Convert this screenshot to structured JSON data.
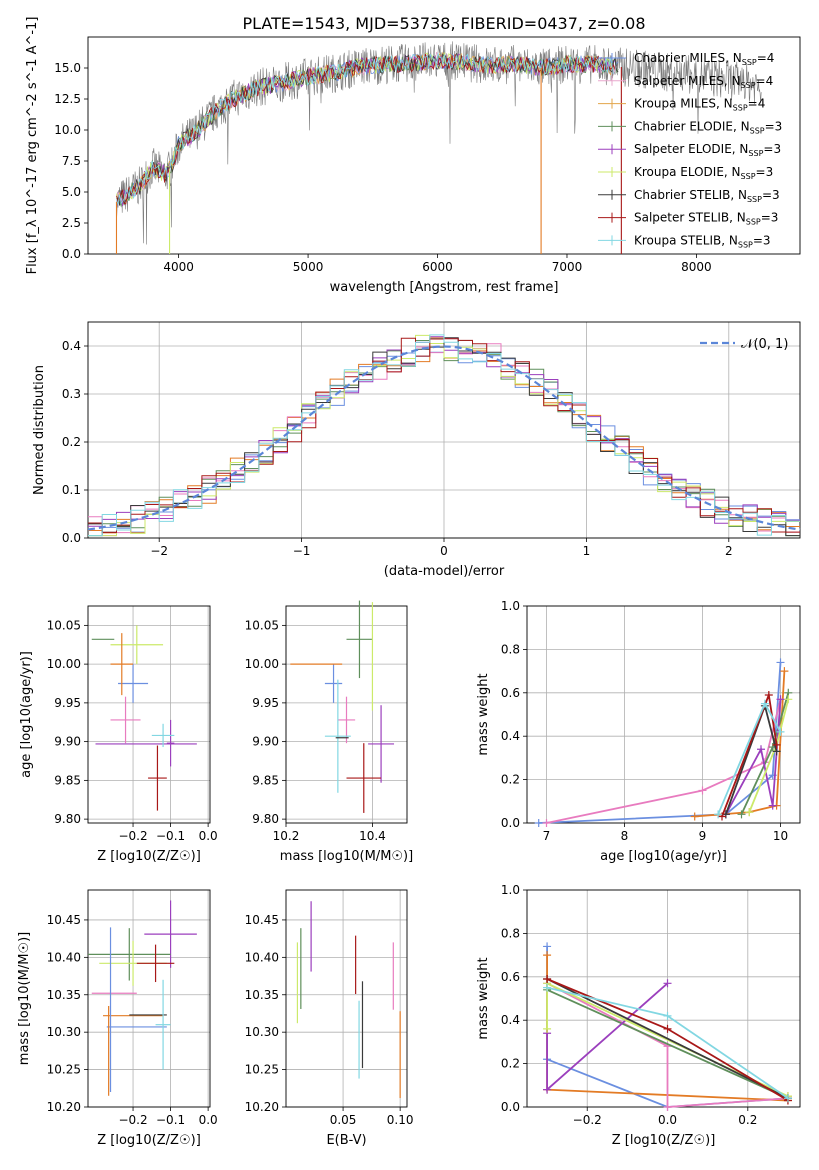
{
  "title": "PLATE=1543, MJD=53738, FIBERID=0437, z=0.08",
  "colors": {
    "chabrier_miles": "#6b8fe0",
    "salpeter_miles": "#e9a8cd",
    "kroupa_miles": "#e2a44a",
    "chabrier_elodie": "#5f8f5b",
    "salpeter_elodie": "#9b3fbd",
    "kroupa_elodie": "#ccea6a",
    "chabrier_stelib": "#3a3a3a",
    "salpeter_stelib": "#a81818",
    "kroupa_stelib": "#82d7e2",
    "spectrum_gray": "#7a7a7a",
    "orange": "#e37b25",
    "pink": "#e87bbf",
    "gauss": "#5b86d8"
  },
  "legend": [
    {
      "model": "Chabrier MILES",
      "nssp": "4",
      "color_key": "chabrier_miles"
    },
    {
      "model": "Salpeter MILES",
      "nssp": "4",
      "color_key": "salpeter_miles"
    },
    {
      "model": "Kroupa MILES",
      "nssp": "4",
      "color_key": "kroupa_miles"
    },
    {
      "model": "Chabrier ELODIE",
      "nssp": "3",
      "color_key": "chabrier_elodie"
    },
    {
      "model": "Salpeter ELODIE",
      "nssp": "3",
      "color_key": "salpeter_elodie"
    },
    {
      "model": "Kroupa ELODIE",
      "nssp": "3",
      "color_key": "kroupa_elodie"
    },
    {
      "model": "Chabrier STELIB",
      "nssp": "3",
      "color_key": "chabrier_stelib"
    },
    {
      "model": "Salpeter STELIB",
      "nssp": "3",
      "color_key": "salpeter_stelib"
    },
    {
      "model": "Kroupa STELIB",
      "nssp": "3",
      "color_key": "kroupa_stelib"
    }
  ],
  "chart_data": [
    {
      "id": "spectrum",
      "type": "line",
      "xlabel": "wavelength [Angstrom, rest frame]",
      "ylabel": "Flux [f_λ 10^-17 erg cm^-2 s^-1 A^-1]",
      "xlim": [
        3300,
        8800
      ],
      "ylim": [
        0,
        17.5
      ],
      "xticks": [
        4000,
        5000,
        6000,
        7000,
        8000
      ],
      "yticks": [
        0.0,
        2.5,
        5.0,
        7.5,
        10.0,
        12.5,
        15.0
      ],
      "grid": false,
      "continuum_x": [
        3520,
        3600,
        3700,
        3800,
        3900,
        3950,
        4000,
        4100,
        4200,
        4300,
        4400,
        4600,
        4800,
        5000,
        5200,
        5400,
        5600,
        5800,
        6000,
        6200,
        6400,
        6600,
        6800,
        7000,
        7200,
        7400,
        7600,
        7800,
        8000,
        8200,
        8400,
        8500
      ],
      "continuum_y": [
        4.2,
        4.8,
        5.5,
        7.0,
        6.4,
        7.2,
        8.8,
        9.6,
        10.6,
        11.6,
        12.4,
        13.4,
        13.8,
        14.3,
        14.6,
        15.1,
        15.3,
        15.4,
        15.6,
        15.5,
        15.2,
        15.3,
        15.0,
        15.3,
        15.3,
        15.1,
        14.9,
        14.6,
        14.4,
        14.1,
        13.8,
        13.5
      ],
      "data_range": [
        3520,
        8500
      ],
      "model_range": [
        3520,
        7400
      ],
      "gap_lines": [
        3520,
        3930,
        6800,
        7420
      ],
      "legend_position": "upper right"
    },
    {
      "id": "residuals",
      "type": "histogram",
      "xlabel": "(data-model)/error",
      "ylabel": "Normed distribution",
      "xlim": [
        -2.5,
        2.5
      ],
      "ylim": [
        0,
        0.45
      ],
      "xticks": [
        -2,
        -1,
        0,
        1,
        2
      ],
      "yticks": [
        0.0,
        0.1,
        0.2,
        0.3,
        0.4
      ],
      "grid": true,
      "bin_width": 0.1,
      "reference": {
        "label": "𝒩(0, 1)",
        "mean": 0,
        "sigma": 1
      },
      "legend_position": "upper right"
    },
    {
      "id": "age_vs_Z",
      "type": "scatter",
      "xlabel": "Z [log10(Z/Z☉)]",
      "ylabel": "age [log10(age/yr)]",
      "xlim": [
        -0.32,
        0.005
      ],
      "ylim": [
        9.795,
        10.075
      ],
      "xticks": [
        -0.2,
        -0.1,
        0.0
      ],
      "yticks": [
        9.8,
        9.85,
        9.9,
        9.95,
        10.0,
        10.05
      ],
      "grid": true,
      "points": [
        {
          "x": -0.28,
          "xerr": 0.03,
          "y": 10.032,
          "yerr": 0.0,
          "color_key": "chabrier_elodie"
        },
        {
          "x": -0.19,
          "xerr": 0.07,
          "y": 10.025,
          "yerr": 0.025,
          "color_key": "kroupa_elodie"
        },
        {
          "x": -0.2,
          "xerr": 0.04,
          "y": 9.975,
          "yerr": 0.025,
          "color_key": "chabrier_miles"
        },
        {
          "x": -0.23,
          "xerr": 0.03,
          "y": 10.0,
          "yerr": 0.04,
          "color_key": "orange"
        },
        {
          "x": -0.22,
          "xerr": 0.04,
          "y": 9.928,
          "yerr": 0.03,
          "color_key": "pink"
        },
        {
          "x": -0.165,
          "xerr": 0.135,
          "y": 9.897,
          "yerr": 0.0,
          "color_key": "salpeter_elodie"
        },
        {
          "x": -0.1,
          "xerr": 0.01,
          "y": 9.898,
          "yerr": 0.03,
          "color_key": "salpeter_elodie"
        },
        {
          "x": -0.12,
          "xerr": 0.03,
          "y": 9.908,
          "yerr": 0.015,
          "color_key": "kroupa_stelib"
        },
        {
          "x": -0.135,
          "xerr": 0.025,
          "y": 9.853,
          "yerr": 0.042,
          "color_key": "salpeter_stelib"
        }
      ]
    },
    {
      "id": "age_vs_mass",
      "type": "scatter",
      "xlabel": "mass [log10(M/M☉)]",
      "ylabel": "",
      "xlim": [
        10.2,
        10.48
      ],
      "ylim": [
        9.795,
        10.075
      ],
      "xticks": [
        10.2,
        10.4
      ],
      "yticks": [
        9.8,
        9.85,
        9.9,
        9.95,
        10.0,
        10.05
      ],
      "grid": true,
      "points": [
        {
          "x": 10.37,
          "xerr": 0.03,
          "y": 10.032,
          "yerr": 0.05,
          "color_key": "chabrier_elodie"
        },
        {
          "x": 10.31,
          "xerr": 0.02,
          "y": 9.975,
          "yerr": 0.025,
          "color_key": "chabrier_miles"
        },
        {
          "x": 10.27,
          "xerr": 0.06,
          "y": 10.0,
          "yerr": 0.0,
          "color_key": "orange"
        },
        {
          "x": 10.34,
          "xerr": 0.02,
          "y": 9.928,
          "yerr": 0.03,
          "color_key": "pink"
        },
        {
          "x": 10.42,
          "xerr": 0.03,
          "y": 9.897,
          "yerr": 0.05,
          "color_key": "salpeter_elodie"
        },
        {
          "x": 10.32,
          "xerr": 0.03,
          "y": 9.907,
          "yerr": 0.073,
          "color_key": "kroupa_stelib"
        },
        {
          "x": 10.38,
          "xerr": 0.04,
          "y": 9.853,
          "yerr": 0.045,
          "color_key": "salpeter_stelib"
        },
        {
          "x": 10.33,
          "xerr": 0.015,
          "y": 9.905,
          "yerr": 0.0,
          "color_key": "chabrier_stelib"
        },
        {
          "x": 10.4,
          "xerr": 0.0,
          "y": 10.01,
          "yerr": 0.07,
          "color_key": "kroupa_elodie"
        }
      ]
    },
    {
      "id": "weight_vs_age",
      "type": "line",
      "xlabel": "age [log10(age/yr)]",
      "ylabel": "mass weight",
      "xlim": [
        6.75,
        10.25
      ],
      "ylim": [
        0,
        1.0
      ],
      "xticks": [
        7,
        8,
        9,
        10
      ],
      "yticks": [
        0.0,
        0.2,
        0.4,
        0.6,
        0.8,
        1.0
      ],
      "grid": true,
      "series": [
        {
          "color_key": "chabrier_miles",
          "x": [
            6.9,
            9.3,
            9.9,
            10.0
          ],
          "y": [
            0.0,
            0.04,
            0.22,
            0.74
          ]
        },
        {
          "color_key": "orange",
          "x": [
            8.9,
            9.6,
            9.95,
            10.05
          ],
          "y": [
            0.03,
            0.05,
            0.08,
            0.7
          ]
        },
        {
          "color_key": "pink",
          "x": [
            7.0,
            9.0,
            9.8,
            10.0
          ],
          "y": [
            0.0,
            0.15,
            0.28,
            0.57
          ]
        },
        {
          "color_key": "chabrier_elodie",
          "x": [
            9.5,
            9.9,
            10.1
          ],
          "y": [
            0.04,
            0.35,
            0.6
          ]
        },
        {
          "color_key": "salpeter_elodie",
          "x": [
            9.3,
            9.75,
            9.9,
            10.0
          ],
          "y": [
            0.04,
            0.34,
            0.08,
            0.57
          ]
        },
        {
          "color_key": "kroupa_elodie",
          "x": [
            9.6,
            9.95,
            10.1
          ],
          "y": [
            0.05,
            0.36,
            0.57
          ]
        },
        {
          "color_key": "chabrier_stelib",
          "x": [
            9.3,
            9.8,
            9.95
          ],
          "y": [
            0.04,
            0.54,
            0.33
          ]
        },
        {
          "color_key": "salpeter_stelib",
          "x": [
            9.25,
            9.85,
            9.95
          ],
          "y": [
            0.03,
            0.59,
            0.36
          ]
        },
        {
          "color_key": "kroupa_stelib",
          "x": [
            9.2,
            9.8,
            10.0
          ],
          "y": [
            0.04,
            0.55,
            0.42
          ]
        }
      ]
    },
    {
      "id": "mass_vs_Z",
      "type": "scatter",
      "xlabel": "Z [log10(Z/Z☉)]",
      "ylabel": "mass [log10(M/M☉)]",
      "xlim": [
        -0.32,
        0.005
      ],
      "ylim": [
        10.2,
        10.49
      ],
      "xticks": [
        -0.2,
        -0.1,
        0.0
      ],
      "yticks": [
        10.2,
        10.25,
        10.3,
        10.35,
        10.4,
        10.45
      ],
      "grid": true,
      "points": [
        {
          "x": -0.1,
          "xerr": 0.07,
          "y": 10.431,
          "yerr": 0.045,
          "color_key": "salpeter_elodie"
        },
        {
          "x": -0.21,
          "xerr": 0.11,
          "y": 10.404,
          "yerr": 0.035,
          "color_key": "chabrier_elodie"
        },
        {
          "x": -0.2,
          "xerr": 0.09,
          "y": 10.392,
          "yerr": 0.03,
          "color_key": "kroupa_elodie"
        },
        {
          "x": -0.14,
          "xerr": 0.05,
          "y": 10.392,
          "yerr": 0.025,
          "color_key": "salpeter_stelib"
        },
        {
          "x": -0.25,
          "xerr": 0.06,
          "y": 10.352,
          "yerr": 0.0,
          "color_key": "pink"
        },
        {
          "x": -0.2,
          "xerr": 0.08,
          "y": 10.322,
          "yerr": 0.0,
          "color_key": "orange"
        },
        {
          "x": -0.16,
          "xerr": 0.05,
          "y": 10.323,
          "yerr": 0.0,
          "color_key": "chabrier_stelib"
        },
        {
          "x": -0.19,
          "xerr": 0.08,
          "y": 10.307,
          "yerr": 0.0,
          "color_key": "chabrier_miles"
        },
        {
          "x": -0.12,
          "xerr": 0.02,
          "y": 10.31,
          "yerr": 0.06,
          "color_key": "kroupa_stelib"
        },
        {
          "x": -0.265,
          "xerr": 0.0,
          "y": 10.275,
          "yerr": 0.06,
          "color_key": "orange"
        },
        {
          "x": -0.26,
          "xerr": 0.0,
          "y": 10.33,
          "yerr": 0.11,
          "color_key": "chabrier_miles"
        }
      ]
    },
    {
      "id": "mass_vs_ebv",
      "type": "scatter",
      "xlabel": "E(B-V)",
      "ylabel": "",
      "xlim": [
        0.0,
        0.106
      ],
      "ylim": [
        10.2,
        10.49
      ],
      "xticks": [
        0.05,
        0.1
      ],
      "yticks": [
        10.2,
        10.25,
        10.3,
        10.35,
        10.4,
        10.45
      ],
      "grid": true,
      "points": [
        {
          "x": 0.022,
          "yerr": 0.047,
          "y": 10.428,
          "color_key": "salpeter_elodie"
        },
        {
          "x": 0.013,
          "yerr": 0.054,
          "y": 10.385,
          "color_key": "chabrier_elodie"
        },
        {
          "x": 0.01,
          "yerr": 0.054,
          "y": 10.366,
          "color_key": "kroupa_elodie"
        },
        {
          "x": 0.061,
          "yerr": 0.039,
          "y": 10.39,
          "color_key": "salpeter_stelib"
        },
        {
          "x": 0.094,
          "yerr": 0.045,
          "y": 10.375,
          "color_key": "pink"
        },
        {
          "x": 0.067,
          "yerr": 0.058,
          "y": 10.31,
          "color_key": "chabrier_stelib"
        },
        {
          "x": 0.064,
          "yerr": 0.052,
          "y": 10.29,
          "color_key": "kroupa_stelib"
        },
        {
          "x": 0.1,
          "yerr": 0.058,
          "y": 10.27,
          "color_key": "orange"
        }
      ]
    },
    {
      "id": "weight_vs_Z",
      "type": "line",
      "xlabel": "Z [log10(Z/Z☉)]",
      "ylabel": "mass weight",
      "xlim": [
        -0.35,
        0.33
      ],
      "ylim": [
        0,
        1.0
      ],
      "xticks": [
        -0.2,
        0.0,
        0.2
      ],
      "yticks": [
        0.0,
        0.2,
        0.4,
        0.6,
        0.8,
        1.0
      ],
      "grid": true,
      "series": [
        {
          "color_key": "chabrier_miles",
          "x": [
            -0.3,
            -0.3,
            0.0,
            0.3
          ],
          "y": [
            0.74,
            0.22,
            0.0,
            0.04
          ]
        },
        {
          "color_key": "orange",
          "x": [
            -0.3,
            -0.3,
            0.3,
            0.3
          ],
          "y": [
            0.7,
            0.08,
            0.03,
            0.05
          ]
        },
        {
          "color_key": "pink",
          "x": [
            -0.3,
            0.0,
            0.0,
            0.3
          ],
          "y": [
            0.57,
            0.28,
            0.0,
            0.04
          ]
        },
        {
          "color_key": "chabrier_elodie",
          "x": [
            -0.3,
            0.3
          ],
          "y": [
            0.54,
            0.04
          ]
        },
        {
          "color_key": "salpeter_elodie",
          "x": [
            0.0,
            -0.3,
            -0.3
          ],
          "y": [
            0.57,
            0.08,
            0.34
          ]
        },
        {
          "color_key": "kroupa_elodie",
          "x": [
            -0.3,
            -0.3,
            0.3
          ],
          "y": [
            0.36,
            0.57,
            0.05
          ]
        },
        {
          "color_key": "chabrier_stelib",
          "x": [
            -0.3,
            0.3
          ],
          "y": [
            0.59,
            0.04
          ]
        },
        {
          "color_key": "salpeter_stelib",
          "x": [
            -0.3,
            0.0,
            0.3
          ],
          "y": [
            0.59,
            0.36,
            0.03
          ]
        },
        {
          "color_key": "kroupa_stelib",
          "x": [
            -0.3,
            0.0,
            0.3
          ],
          "y": [
            0.55,
            0.42,
            0.04
          ]
        }
      ]
    }
  ]
}
